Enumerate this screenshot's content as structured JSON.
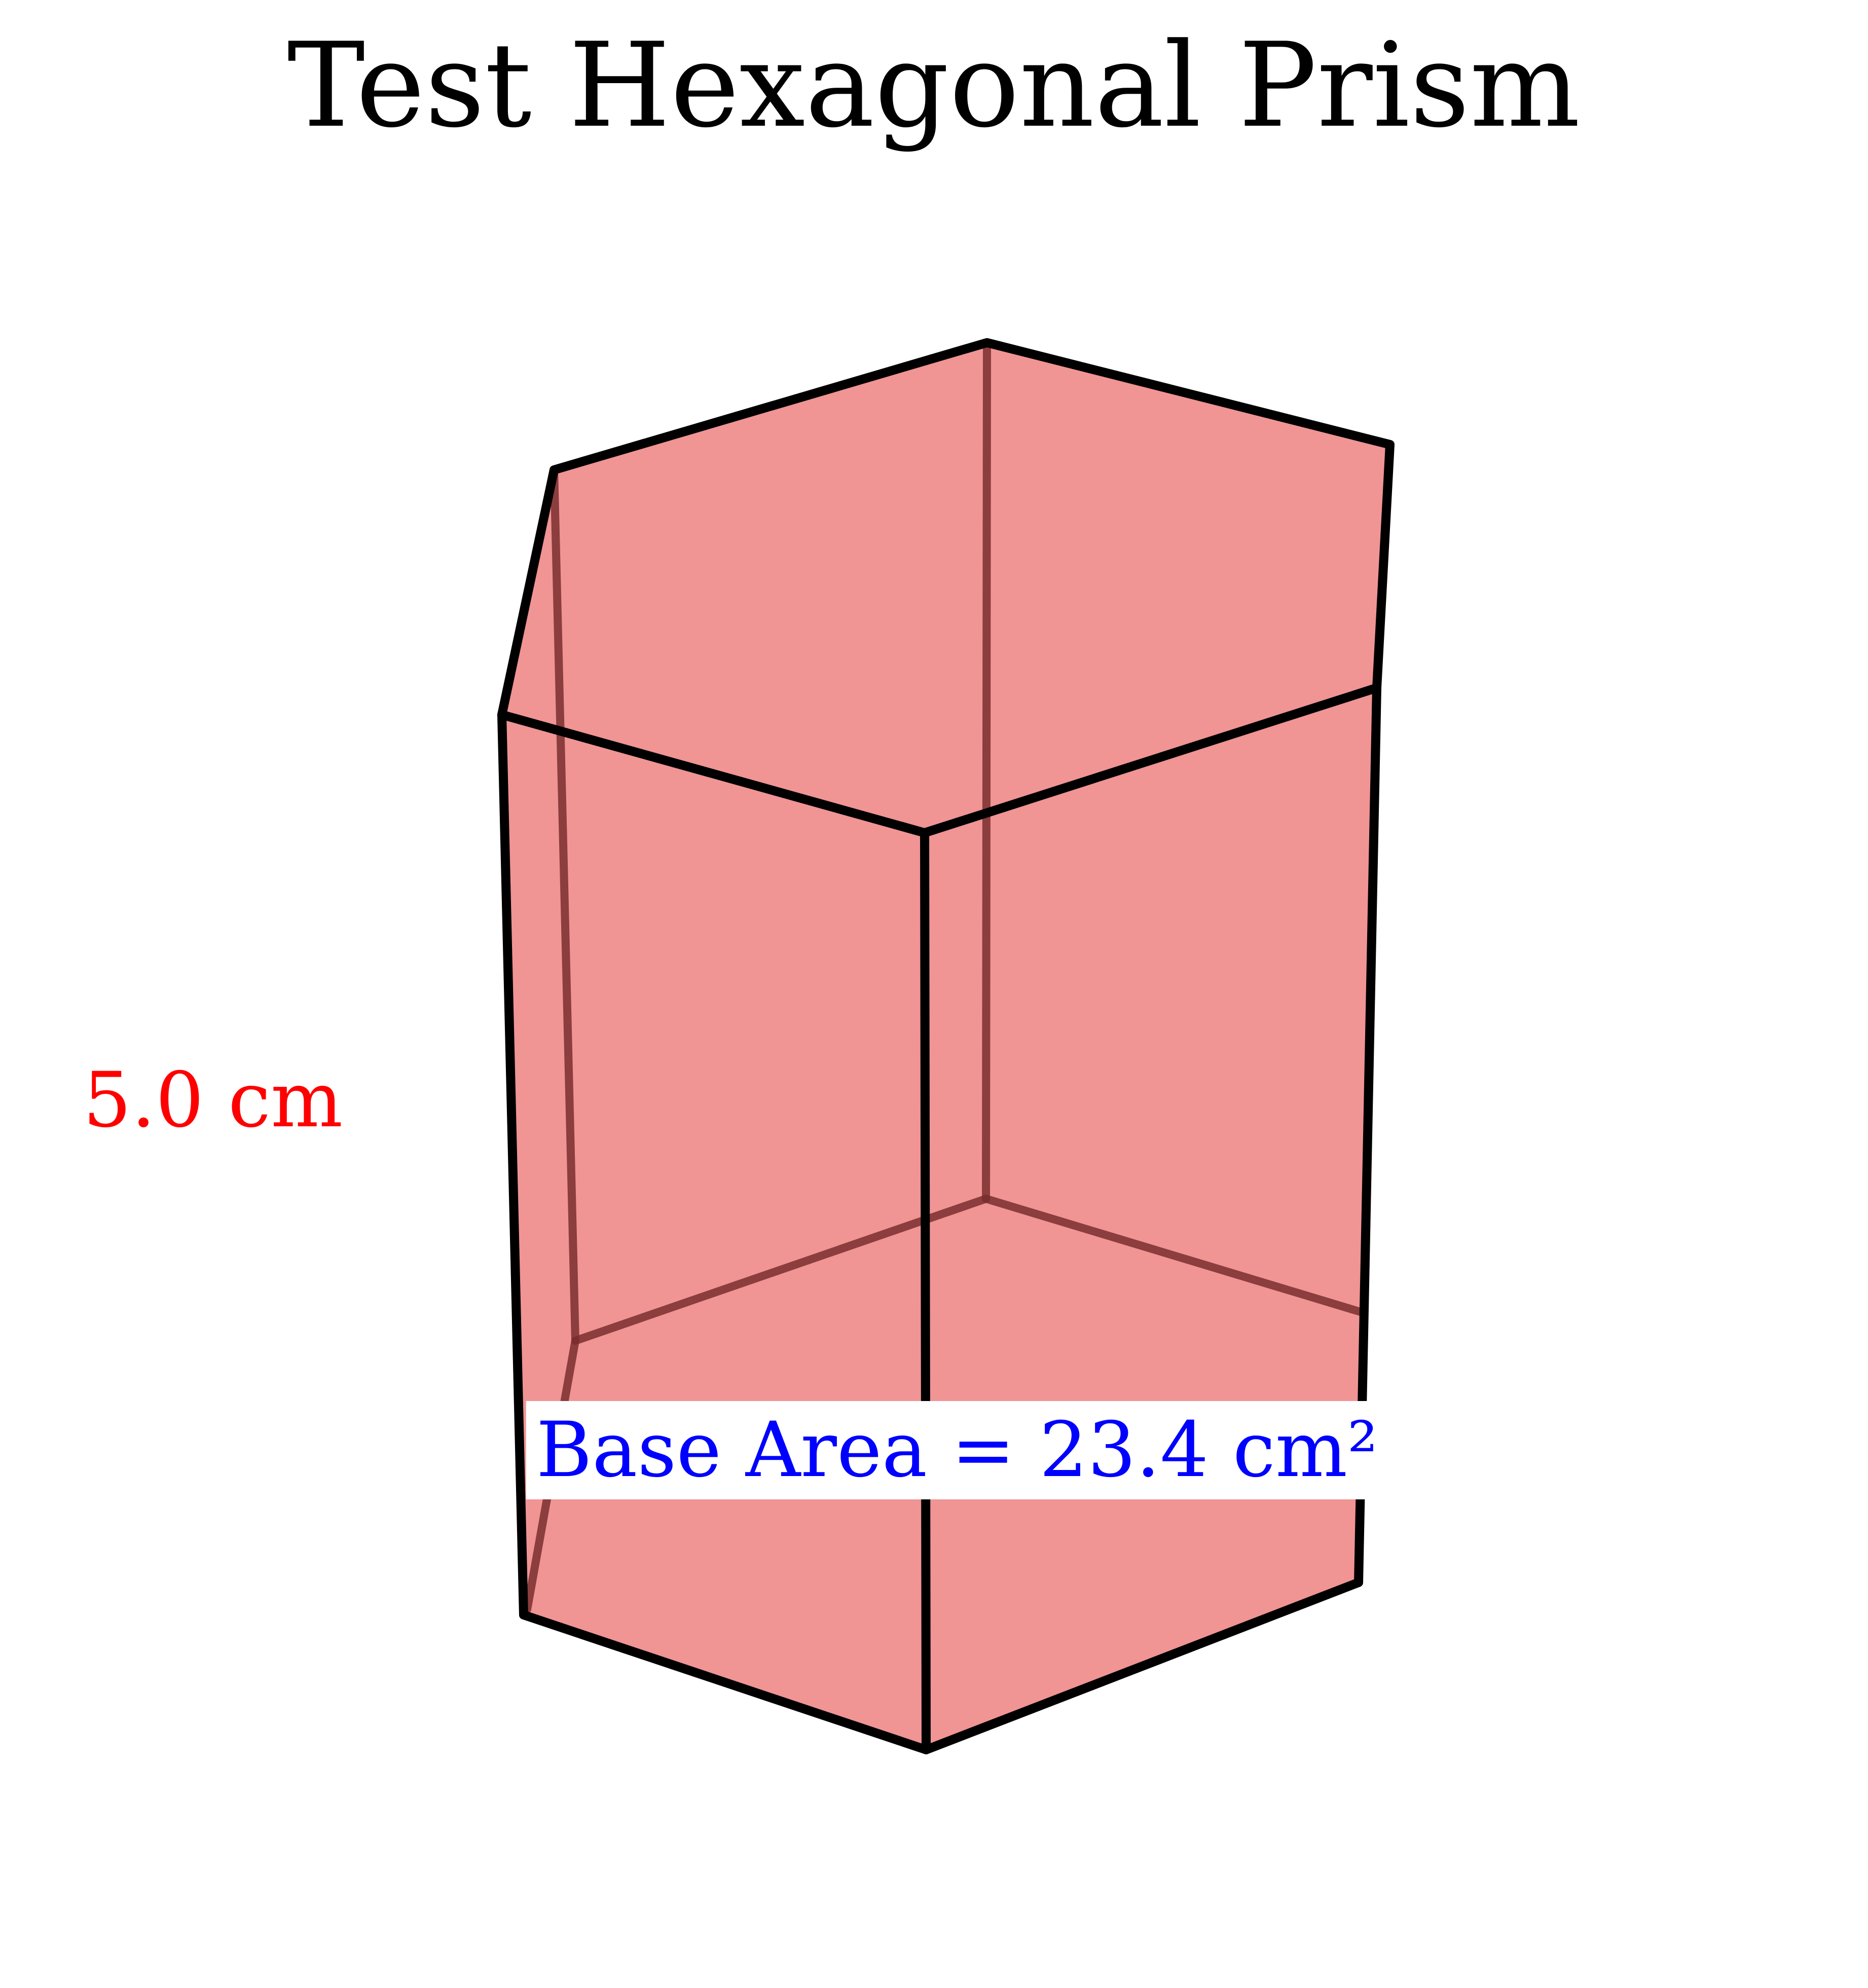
{
  "title": "Test Hexagonal Prism",
  "height_label": "5.0 cm",
  "base_area_label": "Base Area = 23.4 cm²",
  "colors": {
    "prism_fill": "#f09494",
    "edge": "#000000",
    "hidden_edge": "#7a2e2e",
    "height_label": "#ff0000",
    "area_label": "#0000ff",
    "area_label_background": "#ffffff"
  }
}
